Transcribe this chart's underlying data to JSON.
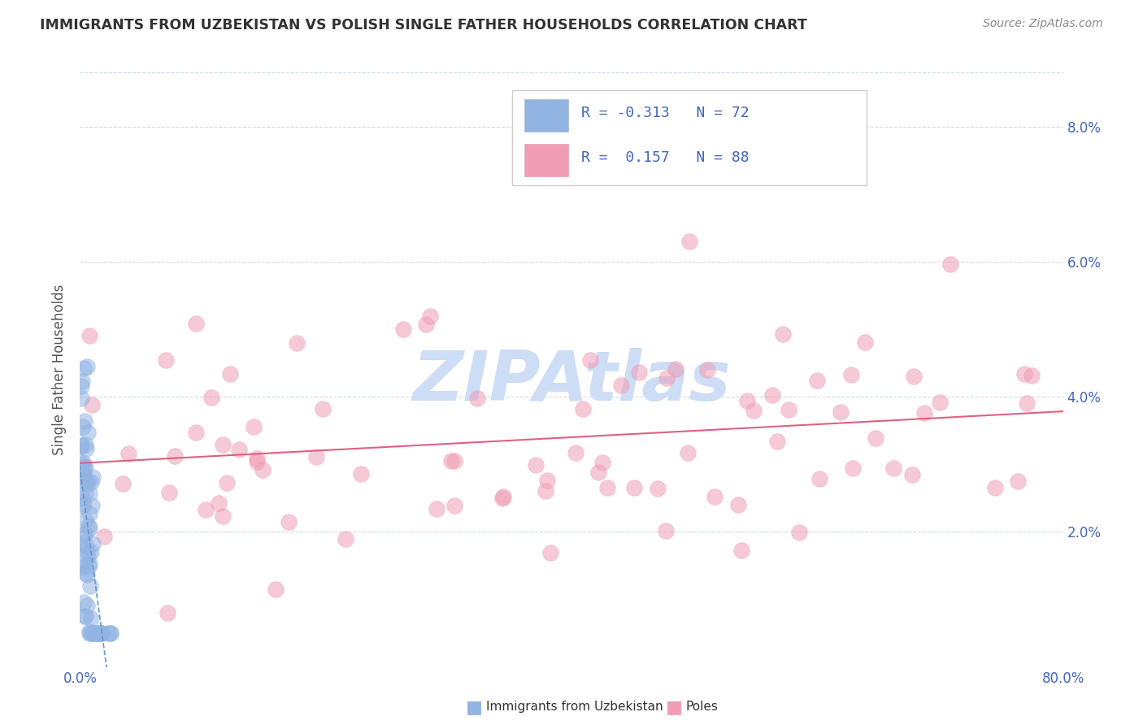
{
  "title": "IMMIGRANTS FROM UZBEKISTAN VS POLISH SINGLE FATHER HOUSEHOLDS CORRELATION CHART",
  "source": "Source: ZipAtlas.com",
  "ylabel": "Single Father Households",
  "xlim": [
    0.0,
    0.8
  ],
  "ylim": [
    0.0,
    0.088
  ],
  "xticks": [
    0.0,
    0.1,
    0.2,
    0.3,
    0.4,
    0.5,
    0.6,
    0.7,
    0.8
  ],
  "xticklabels": [
    "0.0%",
    "",
    "",
    "",
    "",
    "",
    "",
    "",
    "80.0%"
  ],
  "yticks": [
    0.0,
    0.02,
    0.04,
    0.06,
    0.08
  ],
  "yticklabels_right": [
    "",
    "2.0%",
    "4.0%",
    "6.0%",
    "8.0%"
  ],
  "legend_R1": "-0.313",
  "legend_N1": "72",
  "legend_R2": "0.157",
  "legend_N2": "88",
  "label1": "Immigrants from Uzbekistan",
  "label2": "Poles",
  "color1": "#92b4e3",
  "color2": "#f09db5",
  "trendline1_color": "#6699cc",
  "trendline2_color": "#e06080",
  "watermark": "ZIPAtlas",
  "watermark_color": "#ccddf5",
  "background_color": "#ffffff",
  "grid_color": "#d0dce8",
  "tick_label_color": "#4466bb",
  "title_color": "#333333",
  "source_color": "#888888"
}
